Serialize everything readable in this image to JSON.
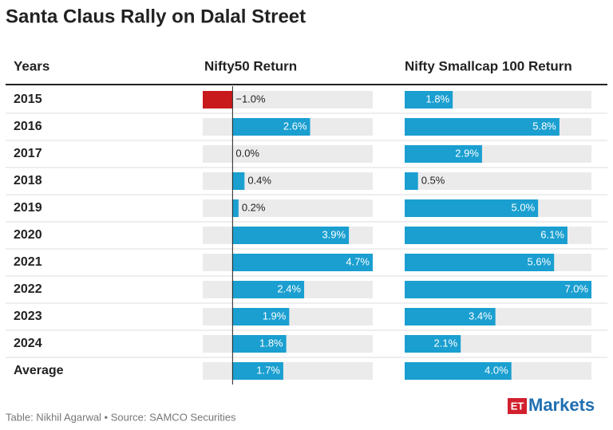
{
  "title": "Santa Claus Rally on Dalal Street",
  "table": {
    "columns": [
      "Years",
      "Nifty50 Return",
      "Nifty Smallcap 100 Return"
    ],
    "rows": [
      "2015",
      "2016",
      "2017",
      "2018",
      "2019",
      "2020",
      "2021",
      "2022",
      "2023",
      "2024",
      "Average"
    ],
    "series": [
      {
        "values": [
          -1.0,
          2.6,
          0.0,
          0.4,
          0.2,
          3.9,
          4.7,
          2.4,
          1.9,
          1.8,
          1.7
        ],
        "value_labels": [
          "−1.0%",
          "2.6%",
          "0.0%",
          "0.4%",
          "0.2%",
          "3.9%",
          "4.7%",
          "2.4%",
          "1.9%",
          "1.8%",
          "1.7%"
        ],
        "color": "#1a9fd0",
        "negative_color": "#c8191d",
        "xlim": [
          -1,
          4.7
        ]
      },
      {
        "values": [
          1.8,
          5.8,
          2.9,
          0.5,
          5.0,
          6.1,
          5.6,
          7.0,
          3.4,
          2.1,
          4.0
        ],
        "value_labels": [
          "1.8%",
          "5.8%",
          "2.9%",
          "0.5%",
          "5.0%",
          "6.1%",
          "5.6%",
          "7.0%",
          "3.4%",
          "2.1%",
          "4.0%"
        ],
        "color": "#1a9fd0",
        "negative_color": "#c8191d",
        "xlim": [
          0,
          7
        ]
      }
    ]
  },
  "footer": {
    "credit": "Table: Nikhil Agarwal • Source: SAMCO Securities",
    "logo": {
      "brand": "ET",
      "product": "Markets"
    }
  }
}
